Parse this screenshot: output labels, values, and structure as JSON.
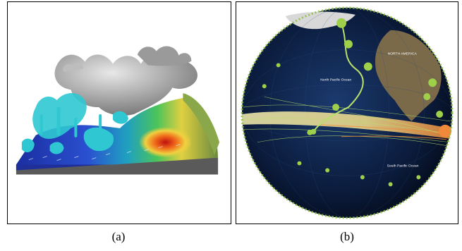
{
  "captions": {
    "a": "(a)",
    "b": "(b)"
  },
  "globe_labels": {
    "north_pacific": "North Pacific Ocean",
    "north_america": "NORTH AMERICA",
    "south_pacific": "South Pacific Ocean"
  },
  "colors": {
    "ocean": "#0b1c3d",
    "land": "#7a6a4a",
    "track": "#b9e06a",
    "track_warm": "#f08a3a",
    "terrain_low": "#1a2f9c",
    "terrain_high": "#d8321e",
    "cloud": "#a8a8a8",
    "isosurface": "#2ad1d6"
  }
}
